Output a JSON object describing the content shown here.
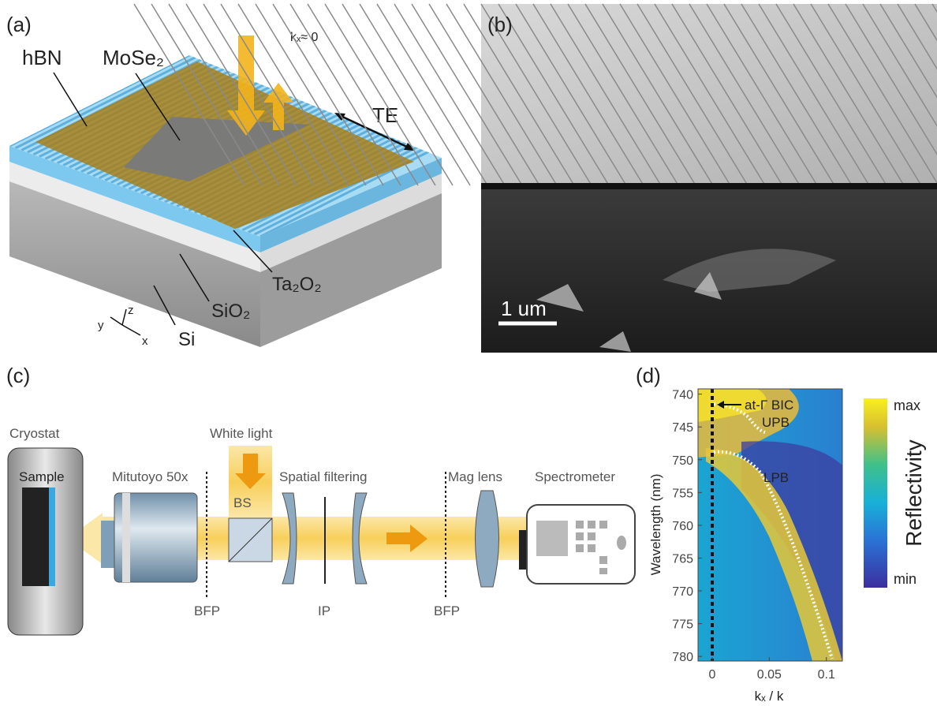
{
  "panels": {
    "a": {
      "label": "(a)",
      "hbn": "hBN",
      "mose2": "MoSe₂",
      "kx": "kₓ≈ 0",
      "te": "TE",
      "ta2o2": "Ta₂O₂",
      "sio2": "SiO₂",
      "si": "Si",
      "axis_x": "x",
      "axis_y": "y",
      "axis_z": "z"
    },
    "b": {
      "label": "(b)",
      "scale_bar": "1 um"
    },
    "c": {
      "label": "(c)",
      "cryostat": "Cryostat",
      "sample": "Sample",
      "objective": "Mitutoyo 50x",
      "white_light": "White light",
      "bs": "BS",
      "spatial_filtering": "Spatial filtering",
      "mag_lens": "Mag lens",
      "spectrometer": "Spectrometer",
      "bfp1": "BFP",
      "ip": "IP",
      "bfp2": "BFP"
    },
    "d": {
      "label": "(d)",
      "y_label": "Wavelength (nm)",
      "x_label": "kₓ / k",
      "ylim": [
        739.2,
        780.7
      ],
      "yticks": [
        740,
        745,
        750,
        755,
        760,
        765,
        770,
        775,
        780
      ],
      "xlim": [
        -0.0124,
        0.114
      ],
      "xticks": [
        0,
        0.05,
        0.1
      ],
      "bic": "at-Γ BIC",
      "upb": "UPB",
      "lpb": "LPB",
      "colorbar": {
        "label": "Reflectivity",
        "max": "max",
        "min": "min"
      }
    }
  }
}
